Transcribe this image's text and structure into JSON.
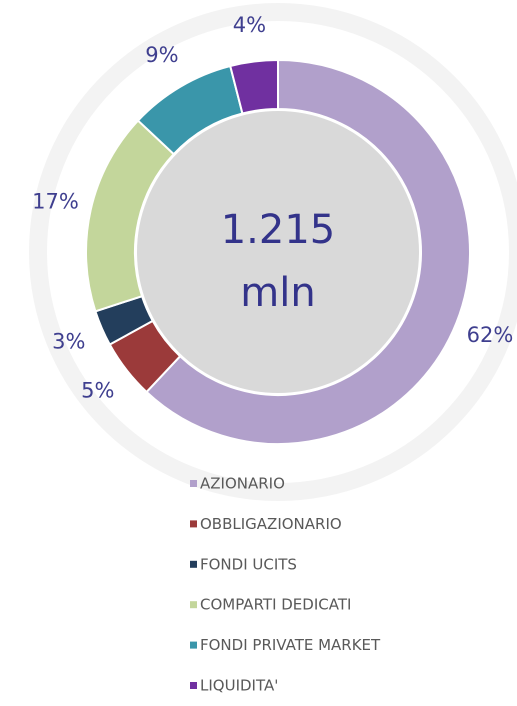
{
  "chart_data": {
    "type": "donut",
    "center_text": [
      "1.215",
      "mln"
    ],
    "categories": [
      "AZIONARIO",
      "OBBLIGAZIONARIO",
      "FONDI UCITS",
      "COMPARTI DEDICATI",
      "FONDI PRIVATE MARKET",
      "LIQUIDITA'"
    ],
    "values": [
      62,
      5,
      3,
      17,
      9,
      4
    ],
    "value_labels": [
      "62%",
      "5%",
      "3%",
      "17%",
      "9%",
      "4%"
    ],
    "colors": [
      "#b1a0cb",
      "#9b3a3a",
      "#233e5c",
      "#c3d69b",
      "#3a96aa",
      "#7030a0"
    ],
    "legend": "bottom"
  }
}
